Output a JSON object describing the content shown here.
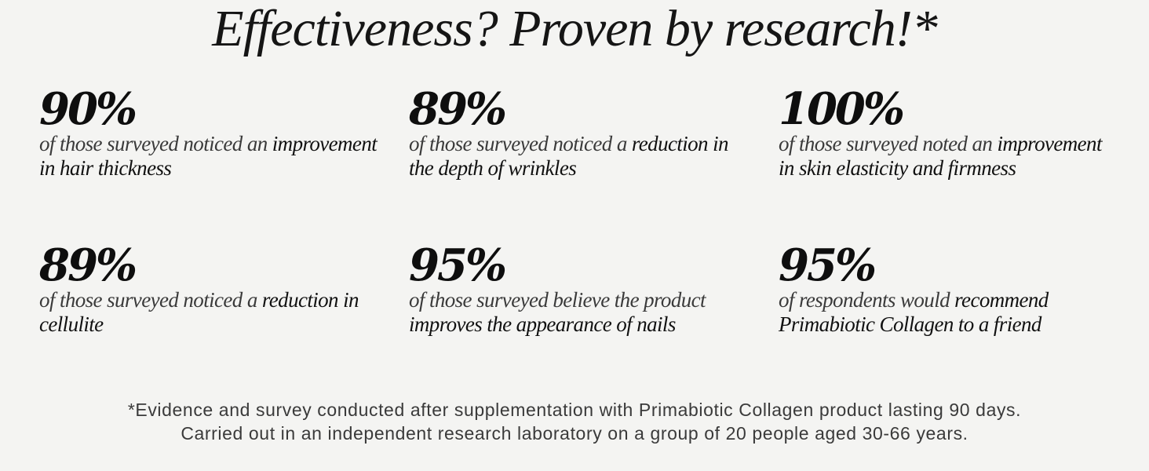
{
  "title": "Effectiveness? Proven by research!*",
  "stats": [
    {
      "value": "90%",
      "desc_plain": "of those surveyed noticed an ",
      "desc_emph": "improvement",
      "desc_line2": "in hair thickness"
    },
    {
      "value": "89%",
      "desc_plain": "of those surveyed noticed a ",
      "desc_emph": "reduction in",
      "desc_line2": "the depth of wrinkles"
    },
    {
      "value": "100%",
      "desc_plain": "of those surveyed noted an ",
      "desc_emph": "improvement",
      "desc_line2": "in skin elasticity and firmness"
    },
    {
      "value": "89%",
      "desc_plain": "of those surveyed noticed a ",
      "desc_emph": "reduction in",
      "desc_line2": "cellulite"
    },
    {
      "value": "95%",
      "desc_plain": "of those surveyed believe the product",
      "desc_emph": "",
      "desc_line2": "improves the appearance of nails"
    },
    {
      "value": "95%",
      "desc_plain": "of respondents would ",
      "desc_emph": "recommend",
      "desc_line2": "Primabiotic Collagen to a friend"
    }
  ],
  "footnote": {
    "line1": "*Evidence and survey conducted after supplementation with Primabiotic Collagen product lasting 90 days.",
    "line2": "Carried out in an independent research laboratory on a group of 20 people aged 30-66 years."
  }
}
